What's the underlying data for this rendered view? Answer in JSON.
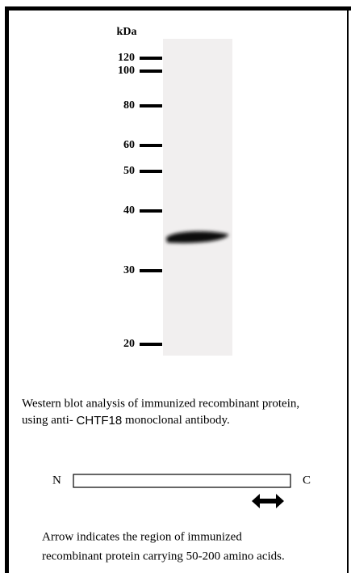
{
  "blot": {
    "unit": "kDa",
    "markers": [
      "120",
      "100",
      "80",
      "60",
      "50",
      "40",
      "30",
      "20"
    ]
  },
  "caption": {
    "line1": "Western blot analysis of immunized recombinant protein,",
    "line2_prefix": "using anti-",
    "antibody": "CHTF18",
    "line2_suffix": "monoclonal antibody."
  },
  "diagram": {
    "n_label": "N",
    "c_label": "C"
  },
  "note": {
    "line1": "Arrow indicates the region of immunized",
    "line2": "recombinant protein carrying 50-200 amino acids."
  }
}
